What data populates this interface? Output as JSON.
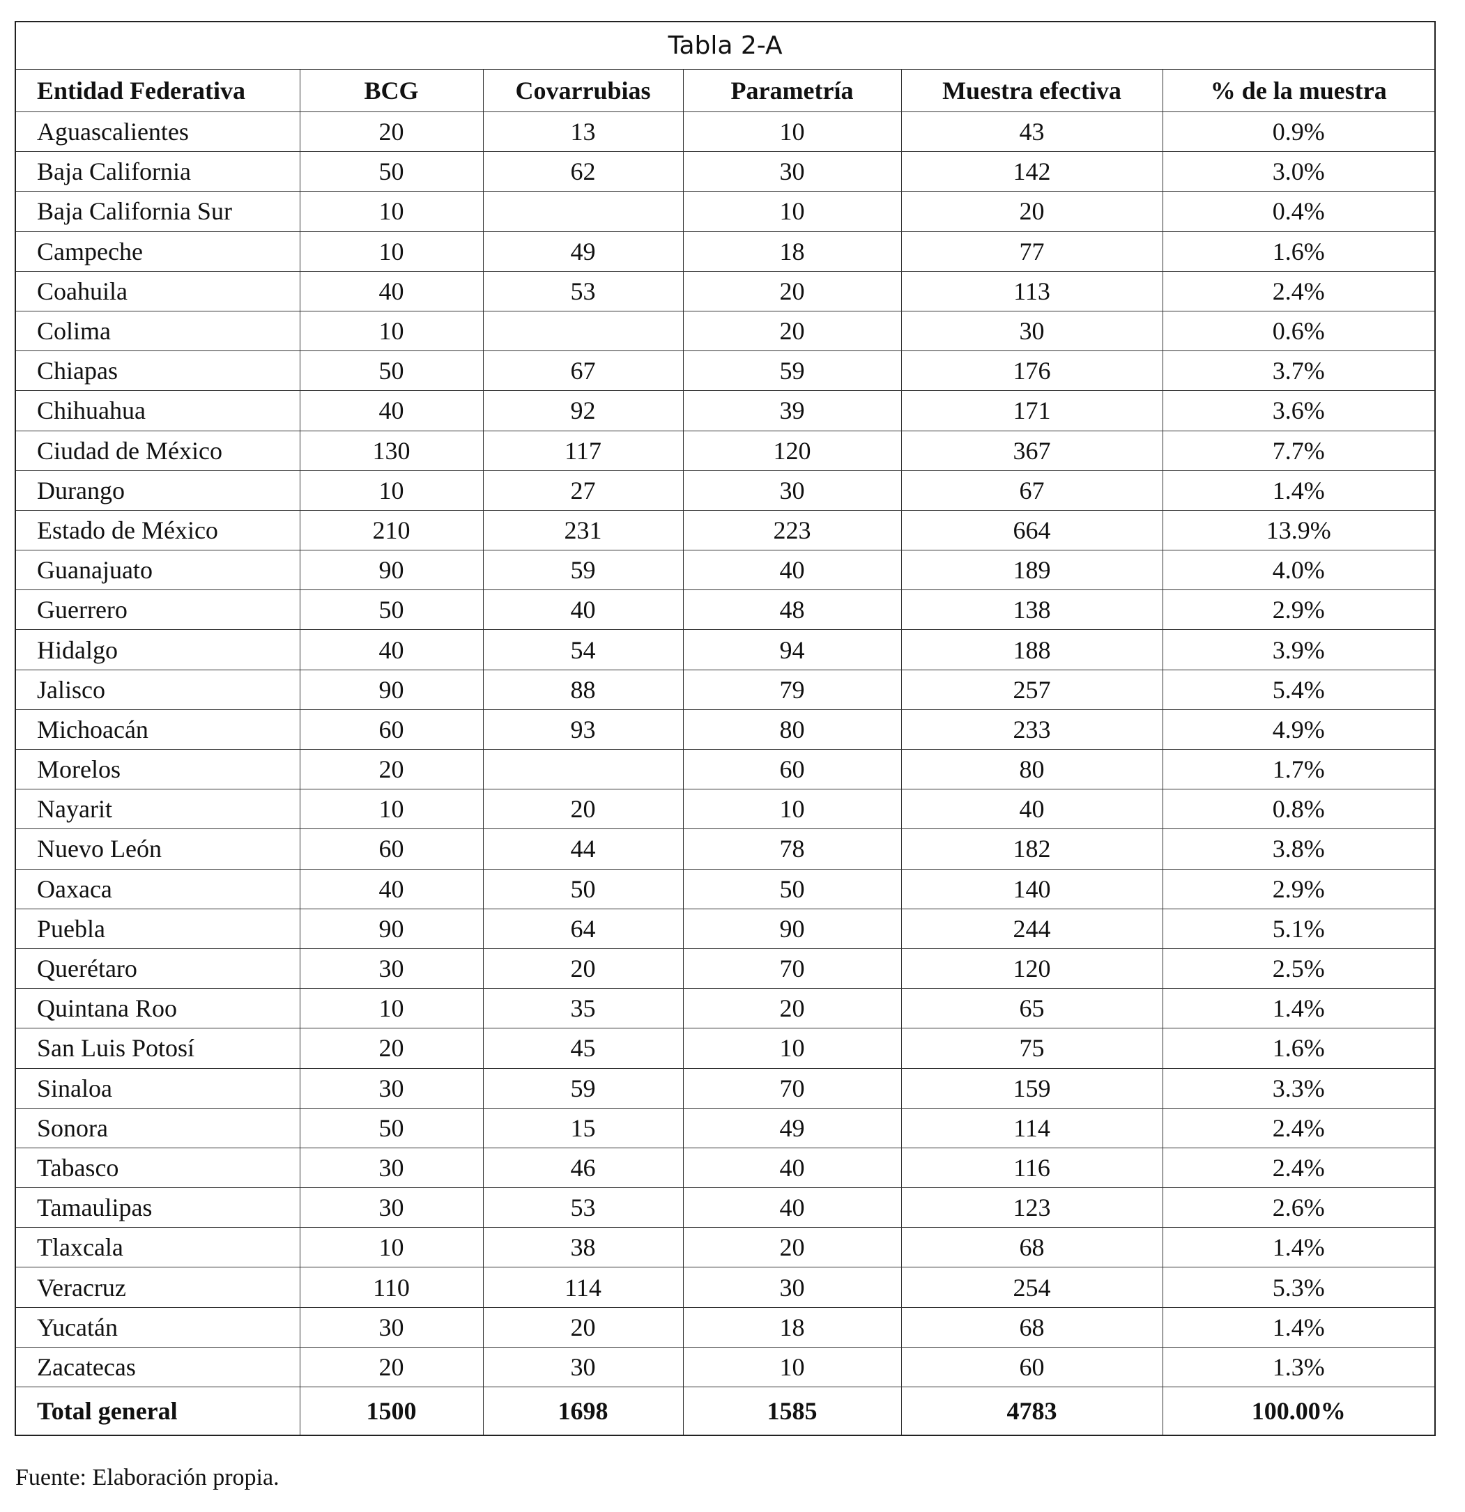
{
  "title": "Tabla 2-A",
  "table": {
    "header": [
      "Entidad Federativa",
      "BCG",
      "Covarrubias",
      "Parametría",
      "Muestra efectiva",
      "% de la muestra"
    ],
    "rows": [
      [
        "Aguascalientes",
        20,
        13,
        10,
        43,
        "0.9%"
      ],
      [
        "Baja California",
        50,
        62,
        30,
        142,
        "3.0%"
      ],
      [
        "Baja California Sur",
        10,
        null,
        10,
        20,
        "0.4%"
      ],
      [
        "Campeche",
        10,
        49,
        18,
        77,
        "1.6%"
      ],
      [
        "Coahuila",
        40,
        53,
        20,
        113,
        "2.4%"
      ],
      [
        "Colima",
        10,
        null,
        20,
        30,
        "0.6%"
      ],
      [
        "Chiapas",
        50,
        67,
        59,
        176,
        "3.7%"
      ],
      [
        "Chihuahua",
        40,
        92,
        39,
        171,
        "3.6%"
      ],
      [
        "Ciudad de México",
        130,
        117,
        120,
        367,
        "7.7%"
      ],
      [
        "Durango",
        10,
        27,
        30,
        67,
        "1.4%"
      ],
      [
        "Estado de México",
        210,
        231,
        223,
        664,
        "13.9%"
      ],
      [
        "Guanajuato",
        90,
        59,
        40,
        189,
        "4.0%"
      ],
      [
        "Guerrero",
        50,
        40,
        48,
        138,
        "2.9%"
      ],
      [
        "Hidalgo",
        40,
        54,
        94,
        188,
        "3.9%"
      ],
      [
        "Jalisco",
        90,
        88,
        79,
        257,
        "5.4%"
      ],
      [
        "Michoacán",
        60,
        93,
        80,
        233,
        "4.9%"
      ],
      [
        "Morelos",
        20,
        null,
        60,
        80,
        "1.7%"
      ],
      [
        "Nayarit",
        10,
        20,
        10,
        40,
        "0.8%"
      ],
      [
        "Nuevo León",
        60,
        44,
        78,
        182,
        "3.8%"
      ],
      [
        "Oaxaca",
        40,
        50,
        50,
        140,
        "2.9%"
      ],
      [
        "Puebla",
        90,
        64,
        90,
        244,
        "5.1%"
      ],
      [
        "Querétaro",
        30,
        20,
        70,
        120,
        "2.5%"
      ],
      [
        "Quintana Roo",
        10,
        35,
        20,
        65,
        "1.4%"
      ],
      [
        "San Luis Potosí",
        20,
        45,
        10,
        75,
        "1.6%"
      ],
      [
        "Sinaloa",
        30,
        59,
        70,
        159,
        "3.3%"
      ],
      [
        "Sonora",
        50,
        15,
        49,
        114,
        "2.4%"
      ],
      [
        "Tabasco",
        30,
        46,
        40,
        116,
        "2.4%"
      ],
      [
        "Tamaulipas",
        30,
        53,
        40,
        123,
        "2.6%"
      ],
      [
        "Tlaxcala",
        10,
        38,
        20,
        68,
        "1.4%"
      ],
      [
        "Veracruz",
        110,
        114,
        30,
        254,
        "5.3%"
      ],
      [
        "Yucatán",
        30,
        20,
        18,
        68,
        "1.4%"
      ],
      [
        "Zacatecas",
        20,
        30,
        10,
        60,
        "1.3%"
      ]
    ],
    "total": [
      "Total general",
      1500,
      1698,
      1585,
      4783,
      "100.00%"
    ]
  },
  "note": "Fuente: Elaboración propia."
}
